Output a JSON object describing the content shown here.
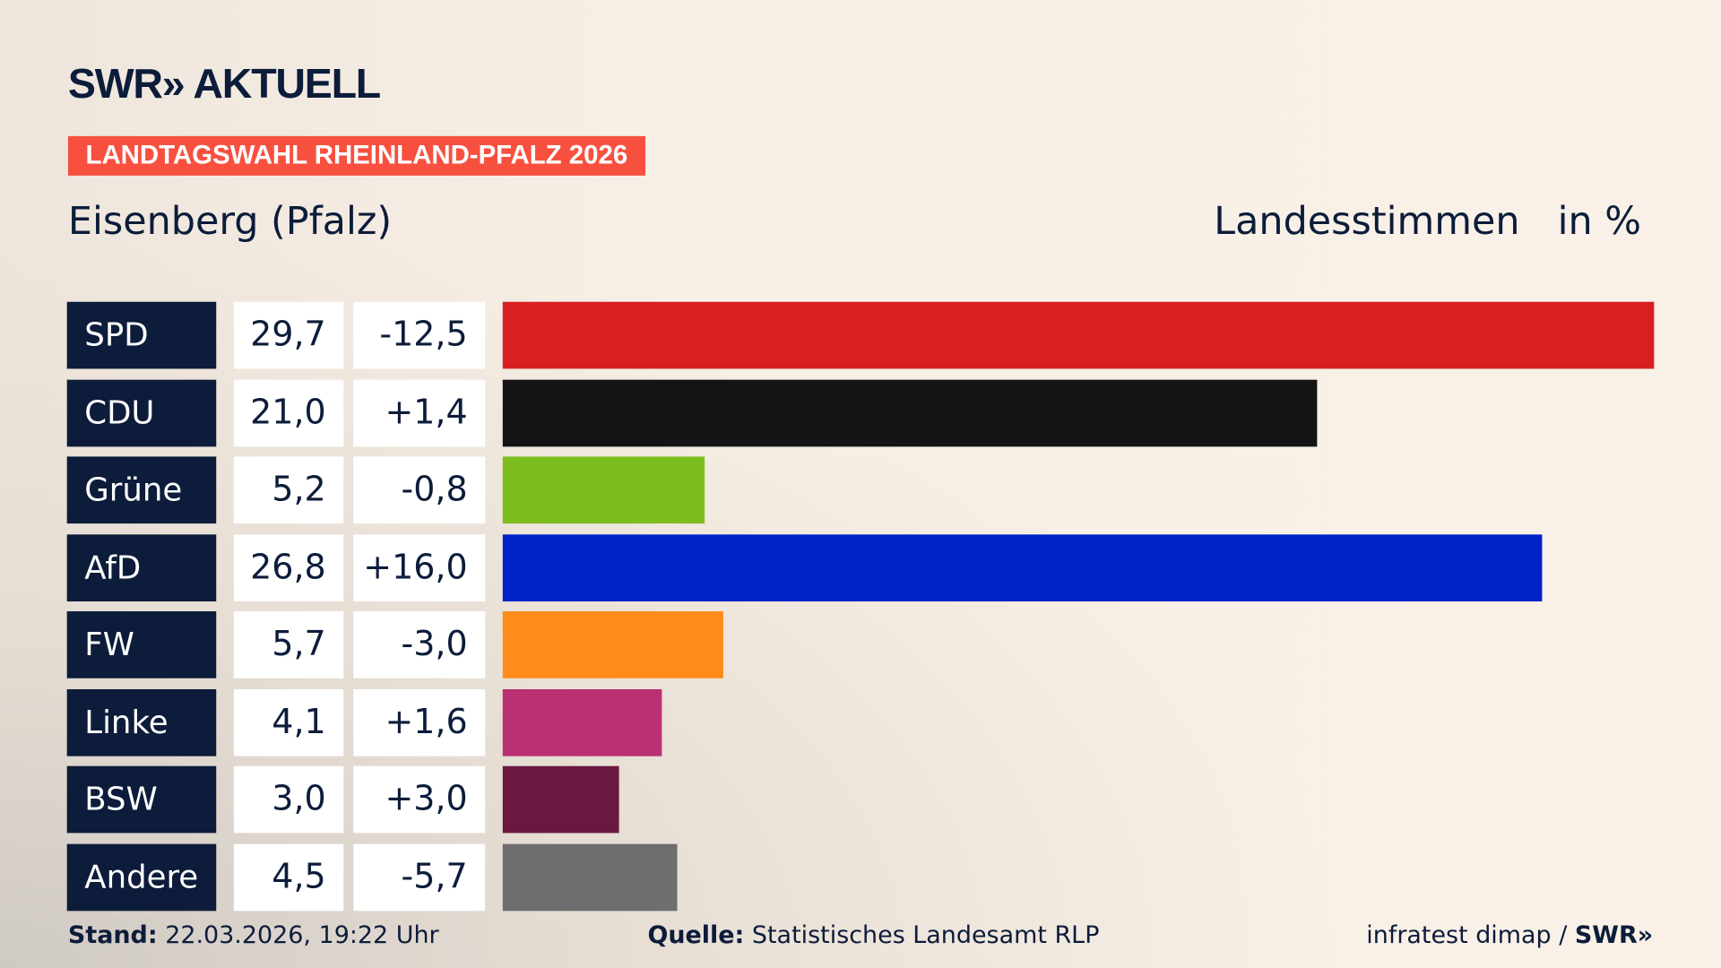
{
  "header": {
    "logo": "SWR» AKTUELL",
    "tag": "LANDTAGSWAHL RHEINLAND-PFALZ 2026",
    "location": "Eisenberg (Pfalz)",
    "vote_type": "Landesstimmen",
    "unit": "in %"
  },
  "chart_data": {
    "type": "bar",
    "orientation": "horizontal",
    "categories": [
      "SPD",
      "CDU",
      "Grüne",
      "AfD",
      "FW",
      "Linke",
      "BSW",
      "Andere"
    ],
    "values": [
      29.7,
      21.0,
      5.2,
      26.8,
      5.7,
      4.1,
      3.0,
      4.5
    ],
    "value_labels": [
      "29,7",
      "21,0",
      "5,2",
      "26,8",
      "5,7",
      "4,1",
      "3,0",
      "4,5"
    ],
    "changes": [
      -12.5,
      1.4,
      -0.8,
      16.0,
      -3.0,
      1.6,
      3.0,
      -5.7
    ],
    "change_labels": [
      "-12,5",
      "+1,4",
      "-0,8",
      "+16,0",
      "-3,0",
      "+1,6",
      "+3,0",
      "-5,7"
    ],
    "colors": [
      "#d82020",
      "#141414",
      "#7bbd1e",
      "#0023c8",
      "#ff8c1a",
      "#bb2f73",
      "#6a1840",
      "#6e6e6e"
    ],
    "xlim": [
      0,
      29.7
    ],
    "grid": false
  },
  "footer": {
    "stand_label": "Stand:",
    "stand_value": "22.03.2026, 19:22 Uhr",
    "source_label": "Quelle:",
    "source_value": "Statistisches Landesamt RLP",
    "credit": "infratest dimap / ",
    "credit_logo": "SWR»"
  }
}
